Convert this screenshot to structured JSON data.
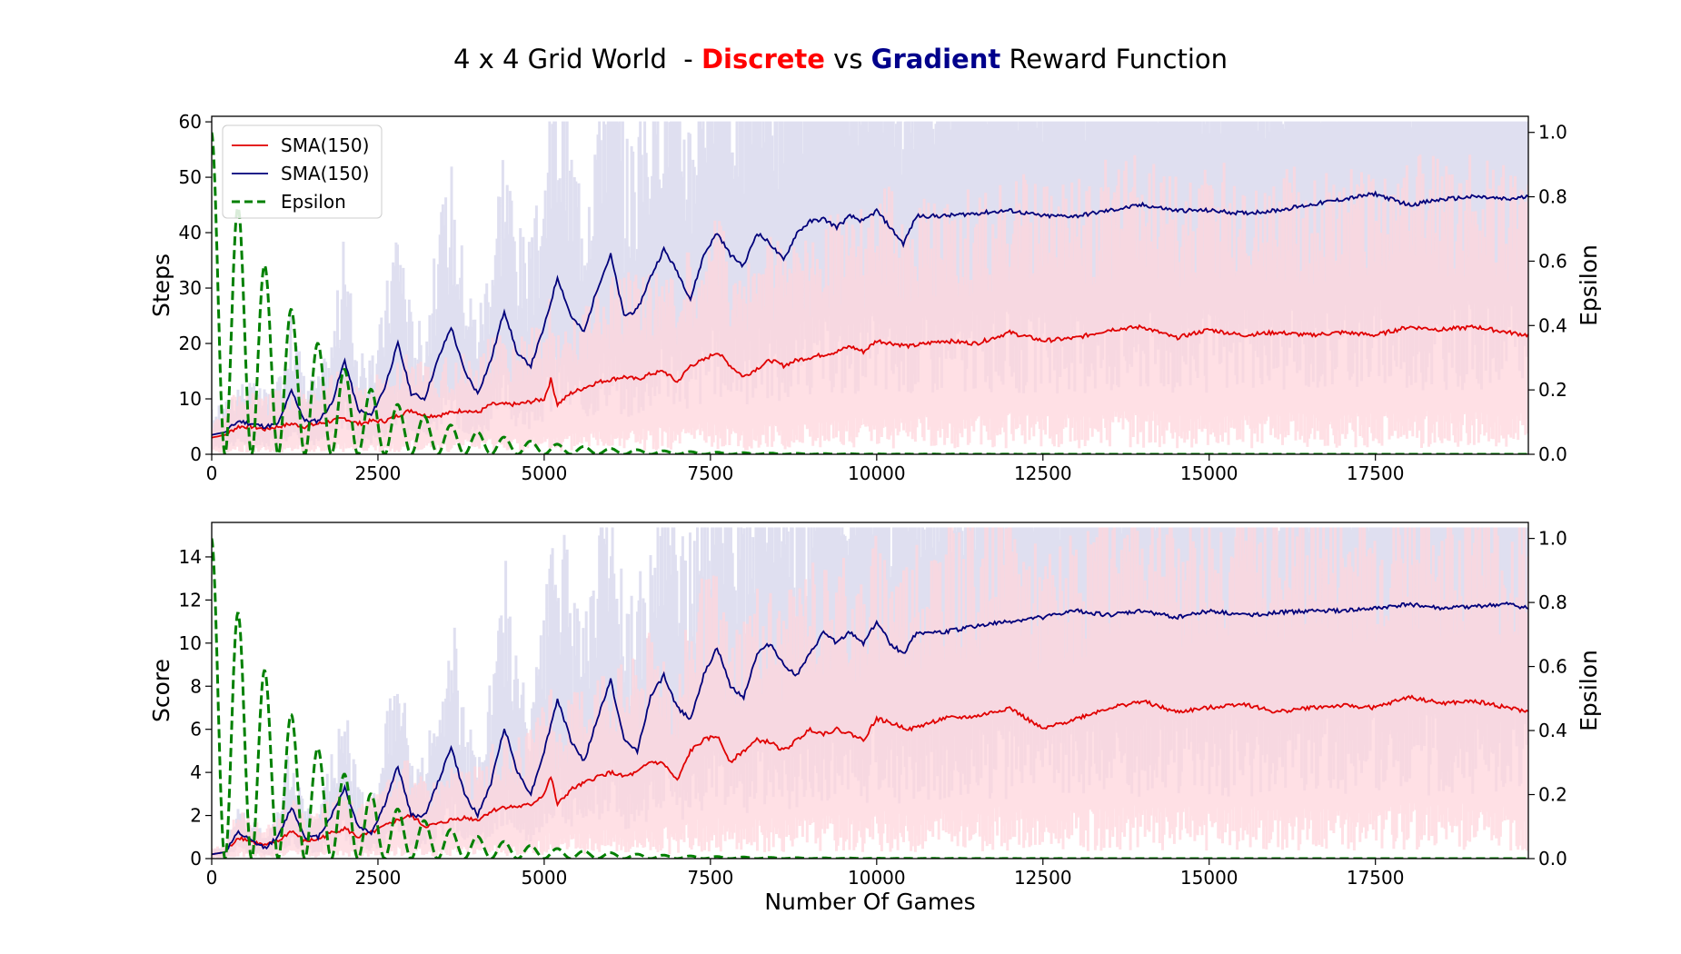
{
  "title": {
    "part1": "4 x 4 Grid World  - ",
    "discrete": "Discrete",
    "mid": " vs ",
    "gradient": "Gradient",
    "part2": " Reward Function"
  },
  "colors": {
    "discrete": "#e00000",
    "gradient": "#00007a",
    "epsilon": "#008000",
    "discrete_band": "#ffd6dc",
    "gradient_band": "#dcdcee",
    "title_discrete": "#ff0000",
    "title_gradient": "#00008b"
  },
  "chart_data": [
    {
      "type": "line",
      "xlabel": "",
      "ylabel": "Steps",
      "y2label": "Epsilon",
      "xlim": [
        0,
        19800
      ],
      "ylim": [
        0,
        61
      ],
      "y2lim": [
        0,
        1.05
      ],
      "xticks": [
        0,
        2500,
        5000,
        7500,
        10000,
        12500,
        15000,
        17500
      ],
      "yticks": [
        0,
        10,
        20,
        30,
        40,
        50,
        60
      ],
      "y2ticks": [
        0.0,
        0.2,
        0.4,
        0.6,
        0.8,
        1.0
      ],
      "legend_position": "upper-left",
      "legend": [
        "SMA(150)",
        "SMA(150)",
        "Epsilon"
      ],
      "series": [
        {
          "name": "SMA(150)",
          "role": "discrete",
          "x": [
            0,
            200,
            400,
            600,
            800,
            1000,
            1200,
            1400,
            1600,
            1800,
            2000,
            2200,
            2400,
            2600,
            2800,
            3000,
            3200,
            3400,
            3600,
            3800,
            4000,
            4200,
            4400,
            4600,
            4800,
            5000,
            5100,
            5200,
            5400,
            5600,
            5800,
            6000,
            6200,
            6400,
            6600,
            6800,
            7000,
            7200,
            7400,
            7600,
            7800,
            8000,
            8200,
            8400,
            8600,
            8800,
            9000,
            9200,
            9400,
            9600,
            9800,
            10000,
            10500,
            11000,
            11500,
            12000,
            12500,
            13000,
            13500,
            14000,
            14500,
            15000,
            15500,
            16000,
            16500,
            17000,
            17500,
            18000,
            18500,
            19000,
            19500,
            19800
          ],
          "y": [
            3,
            3.5,
            5,
            5,
            4.5,
            5,
            5.5,
            5,
            5.5,
            6,
            6.5,
            5.5,
            6,
            6,
            7,
            8,
            7,
            7,
            7.5,
            8,
            7.5,
            9,
            9,
            9,
            9.5,
            10,
            13.5,
            9,
            11,
            12,
            13,
            13.5,
            14,
            13.5,
            14.5,
            15,
            13,
            16,
            17,
            18.5,
            16,
            14,
            15.5,
            17,
            16,
            17,
            17.5,
            18,
            18.5,
            19.5,
            18.5,
            20.5,
            19.5,
            20.5,
            20,
            22,
            20.5,
            21,
            22.5,
            23,
            21,
            22.5,
            21.5,
            22,
            21.5,
            22,
            21.5,
            23,
            22.5,
            23,
            22,
            21.5
          ]
        },
        {
          "name": "SMA(150)",
          "role": "gradient",
          "x": [
            0,
            200,
            400,
            600,
            800,
            1000,
            1200,
            1400,
            1600,
            1800,
            2000,
            2200,
            2400,
            2600,
            2800,
            3000,
            3200,
            3400,
            3600,
            3800,
            4000,
            4200,
            4400,
            4600,
            4800,
            5000,
            5200,
            5400,
            5600,
            5800,
            6000,
            6200,
            6400,
            6600,
            6800,
            7000,
            7200,
            7400,
            7600,
            7800,
            8000,
            8200,
            8400,
            8600,
            8800,
            9000,
            9200,
            9400,
            9600,
            9800,
            10000,
            10200,
            10400,
            10600,
            11000,
            11500,
            12000,
            12500,
            13000,
            13500,
            14000,
            14500,
            15000,
            15500,
            16000,
            16500,
            17000,
            17500,
            18000,
            18500,
            19000,
            19500,
            19800
          ],
          "y": [
            3.5,
            4,
            6,
            5.5,
            5,
            5.5,
            11.5,
            6,
            6,
            9,
            17,
            8,
            7,
            12,
            20,
            11,
            10,
            17,
            23,
            15,
            11,
            17,
            26,
            18,
            16,
            23,
            32,
            25,
            22,
            30,
            36,
            25,
            26,
            32,
            37,
            33,
            28,
            36,
            40,
            36,
            34,
            40,
            38,
            35,
            40,
            42,
            42.5,
            41,
            43,
            42,
            44,
            41,
            38,
            43,
            43,
            43.5,
            44,
            43,
            43,
            44,
            45,
            44,
            44,
            43.5,
            44,
            45,
            46,
            47,
            45,
            46,
            46.5,
            46,
            46.5
          ]
        },
        {
          "name": "Epsilon",
          "role": "epsilon",
          "axis": "right",
          "equation": "exp(-x/1500) * cos(2*pi*x/800)^2"
        }
      ]
    },
    {
      "type": "line",
      "xlabel": "Number Of Games",
      "ylabel": "Score",
      "y2label": "Epsilon",
      "xlim": [
        0,
        19800
      ],
      "ylim": [
        0,
        15.6
      ],
      "y2lim": [
        0,
        1.05
      ],
      "xticks": [
        0,
        2500,
        5000,
        7500,
        10000,
        12500,
        15000,
        17500
      ],
      "yticks": [
        0,
        2,
        4,
        6,
        8,
        10,
        12,
        14
      ],
      "y2ticks": [
        0.0,
        0.2,
        0.4,
        0.6,
        0.8,
        1.0
      ],
      "series": [
        {
          "name": "SMA(150)",
          "role": "discrete",
          "x": [
            0,
            200,
            400,
            600,
            800,
            1000,
            1200,
            1400,
            1600,
            1800,
            2000,
            2200,
            2400,
            2600,
            2800,
            3000,
            3200,
            3400,
            3600,
            3800,
            4000,
            4200,
            4400,
            4600,
            4800,
            5000,
            5100,
            5200,
            5400,
            5600,
            5800,
            6000,
            6200,
            6400,
            6600,
            6800,
            7000,
            7200,
            7400,
            7600,
            7800,
            8000,
            8200,
            8400,
            8600,
            8800,
            9000,
            9200,
            9400,
            9600,
            9800,
            10000,
            10500,
            11000,
            11500,
            12000,
            12500,
            13000,
            13500,
            14000,
            14500,
            15000,
            15500,
            16000,
            16500,
            17000,
            17500,
            18000,
            18500,
            19000,
            19500,
            19800
          ],
          "y": [
            0.2,
            0.3,
            1,
            0.8,
            0.6,
            0.8,
            1.3,
            0.8,
            0.9,
            1.2,
            1.4,
            1,
            1.2,
            1.5,
            1.8,
            2,
            1.5,
            1.6,
            1.8,
            1.9,
            1.8,
            2.2,
            2.4,
            2.4,
            2.5,
            3,
            3.8,
            2.5,
            3.2,
            3.5,
            3.8,
            4,
            3.8,
            4,
            4.5,
            4.4,
            3.6,
            5,
            5.5,
            5.7,
            4.5,
            5,
            5.5,
            5.4,
            5,
            5.5,
            6,
            5.8,
            6,
            5.8,
            5.5,
            6.5,
            6,
            6.5,
            6.6,
            7,
            6,
            6.5,
            7,
            7.3,
            6.8,
            7,
            7.2,
            6.8,
            7,
            7.1,
            7,
            7.5,
            7.2,
            7.3,
            7,
            6.8
          ]
        },
        {
          "name": "SMA(150)",
          "role": "gradient",
          "x": [
            0,
            200,
            400,
            600,
            800,
            1000,
            1200,
            1400,
            1600,
            1800,
            2000,
            2200,
            2400,
            2600,
            2800,
            3000,
            3200,
            3400,
            3600,
            3800,
            4000,
            4200,
            4400,
            4600,
            4800,
            5000,
            5200,
            5400,
            5600,
            5800,
            6000,
            6200,
            6400,
            6600,
            6800,
            7000,
            7200,
            7400,
            7600,
            7800,
            8000,
            8200,
            8400,
            8600,
            8800,
            9000,
            9200,
            9400,
            9600,
            9800,
            10000,
            10200,
            10400,
            10600,
            11000,
            11500,
            12000,
            12500,
            13000,
            13500,
            14000,
            14500,
            15000,
            15500,
            16000,
            16500,
            17000,
            17500,
            18000,
            18500,
            19000,
            19500,
            19800
          ],
          "y": [
            0.2,
            0.3,
            1.2,
            0.8,
            0.5,
            1,
            2.4,
            1,
            1,
            2,
            3.3,
            1.5,
            1.2,
            2.5,
            4.3,
            2,
            2,
            3.5,
            5.2,
            3,
            2,
            3.5,
            6.1,
            4,
            3,
            5,
            7.4,
            5.5,
            4.5,
            6.5,
            8.3,
            5.5,
            5,
            7.5,
            8.5,
            7,
            6.5,
            8.5,
            9.8,
            8,
            7.5,
            9.5,
            10,
            9,
            8.5,
            9.5,
            10.5,
            10,
            10.5,
            10,
            11,
            10,
            9.5,
            10.5,
            10.5,
            10.8,
            11,
            11.2,
            11.5,
            11.3,
            11.5,
            11.2,
            11.5,
            11.3,
            11.4,
            11.5,
            11.5,
            11.6,
            11.8,
            11.6,
            11.7,
            11.8,
            11.6
          ]
        },
        {
          "name": "Epsilon",
          "role": "epsilon",
          "axis": "right",
          "equation": "exp(-x/1500) * cos(2*pi*x/800)^2"
        }
      ]
    }
  ]
}
